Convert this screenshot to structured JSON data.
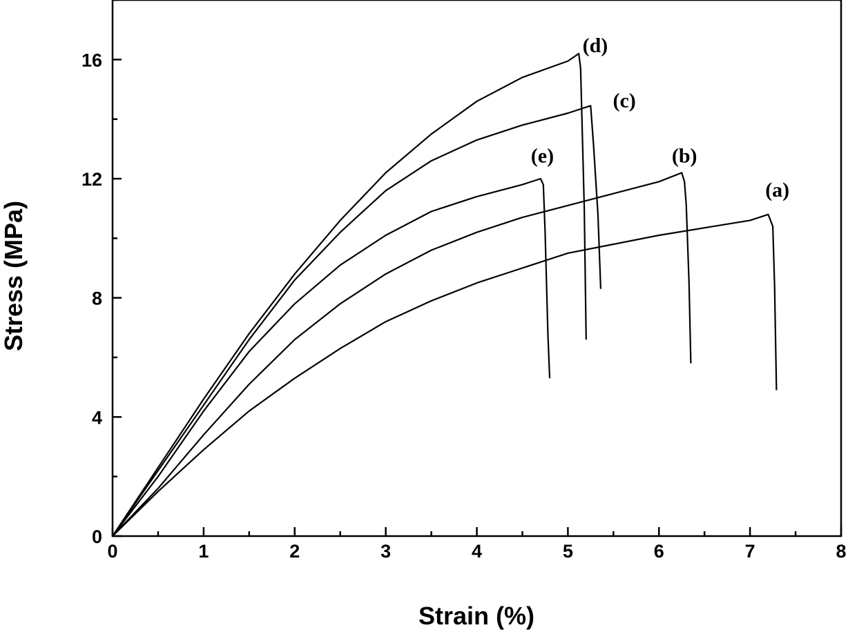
{
  "chart_data": {
    "type": "line",
    "title": "",
    "xlabel": "Strain (%)",
    "ylabel": "Stress (MPa)",
    "xlim": [
      0,
      8
    ],
    "ylim": [
      0,
      18
    ],
    "xticks": [
      "0",
      "1",
      "2",
      "3",
      "4",
      "5",
      "6",
      "7",
      "8"
    ],
    "yticks": [
      "0",
      "4",
      "8",
      "12",
      "16"
    ],
    "grid": false,
    "legend": "none",
    "line_color": "#000000",
    "series": [
      {
        "name": "(a)",
        "points": [
          [
            0,
            0
          ],
          [
            0.5,
            1.5
          ],
          [
            1,
            2.9
          ],
          [
            1.5,
            4.2
          ],
          [
            2,
            5.3
          ],
          [
            2.5,
            6.3
          ],
          [
            3,
            7.2
          ],
          [
            3.5,
            7.9
          ],
          [
            4,
            8.5
          ],
          [
            4.5,
            9.0
          ],
          [
            5,
            9.5
          ],
          [
            5.5,
            9.8
          ],
          [
            6,
            10.1
          ],
          [
            6.5,
            10.35
          ],
          [
            7,
            10.6
          ],
          [
            7.2,
            10.8
          ],
          [
            7.25,
            10.4
          ],
          [
            7.27,
            8.4
          ],
          [
            7.29,
            4.9
          ]
        ]
      },
      {
        "name": "(b)",
        "points": [
          [
            0,
            0
          ],
          [
            0.5,
            1.6
          ],
          [
            1,
            3.4
          ],
          [
            1.5,
            5.1
          ],
          [
            2,
            6.6
          ],
          [
            2.5,
            7.8
          ],
          [
            3,
            8.8
          ],
          [
            3.5,
            9.6
          ],
          [
            4,
            10.2
          ],
          [
            4.5,
            10.7
          ],
          [
            5,
            11.1
          ],
          [
            5.5,
            11.5
          ],
          [
            6,
            11.9
          ],
          [
            6.25,
            12.2
          ],
          [
            6.28,
            11.9
          ],
          [
            6.3,
            11.1
          ],
          [
            6.33,
            8.5
          ],
          [
            6.35,
            5.8
          ]
        ]
      },
      {
        "name": "(c)",
        "points": [
          [
            0,
            0
          ],
          [
            0.5,
            2.2
          ],
          [
            1,
            4.4
          ],
          [
            1.5,
            6.6
          ],
          [
            2,
            8.6
          ],
          [
            2.5,
            10.2
          ],
          [
            3,
            11.6
          ],
          [
            3.5,
            12.6
          ],
          [
            4,
            13.3
          ],
          [
            4.5,
            13.8
          ],
          [
            5,
            14.2
          ],
          [
            5.25,
            14.45
          ],
          [
            5.28,
            13.2
          ],
          [
            5.33,
            10.8
          ],
          [
            5.36,
            8.3
          ]
        ]
      },
      {
        "name": "(d)",
        "points": [
          [
            0,
            0
          ],
          [
            0.5,
            2.3
          ],
          [
            1,
            4.6
          ],
          [
            1.5,
            6.8
          ],
          [
            2,
            8.8
          ],
          [
            2.5,
            10.6
          ],
          [
            3,
            12.2
          ],
          [
            3.5,
            13.5
          ],
          [
            4,
            14.6
          ],
          [
            4.5,
            15.4
          ],
          [
            5,
            15.95
          ],
          [
            5.12,
            16.2
          ],
          [
            5.14,
            15.7
          ],
          [
            5.18,
            11.0
          ],
          [
            5.2,
            6.6
          ]
        ]
      },
      {
        "name": "(e)",
        "points": [
          [
            0,
            0
          ],
          [
            0.5,
            2.0
          ],
          [
            1,
            4.2
          ],
          [
            1.5,
            6.2
          ],
          [
            2,
            7.8
          ],
          [
            2.5,
            9.1
          ],
          [
            3,
            10.1
          ],
          [
            3.5,
            10.9
          ],
          [
            4,
            11.4
          ],
          [
            4.5,
            11.8
          ],
          [
            4.7,
            12.0
          ],
          [
            4.73,
            11.8
          ],
          [
            4.75,
            10.2
          ],
          [
            4.78,
            6.8
          ],
          [
            4.8,
            5.3
          ]
        ]
      }
    ],
    "annotations": [
      {
        "text": "(a)",
        "x": 7.3,
        "y": 11.4
      },
      {
        "text": "(b)",
        "x": 6.28,
        "y": 12.55
      },
      {
        "text": "(c)",
        "x": 5.62,
        "y": 14.4
      },
      {
        "text": "(d)",
        "x": 5.3,
        "y": 16.25
      },
      {
        "text": "(e)",
        "x": 4.72,
        "y": 12.55
      }
    ]
  }
}
